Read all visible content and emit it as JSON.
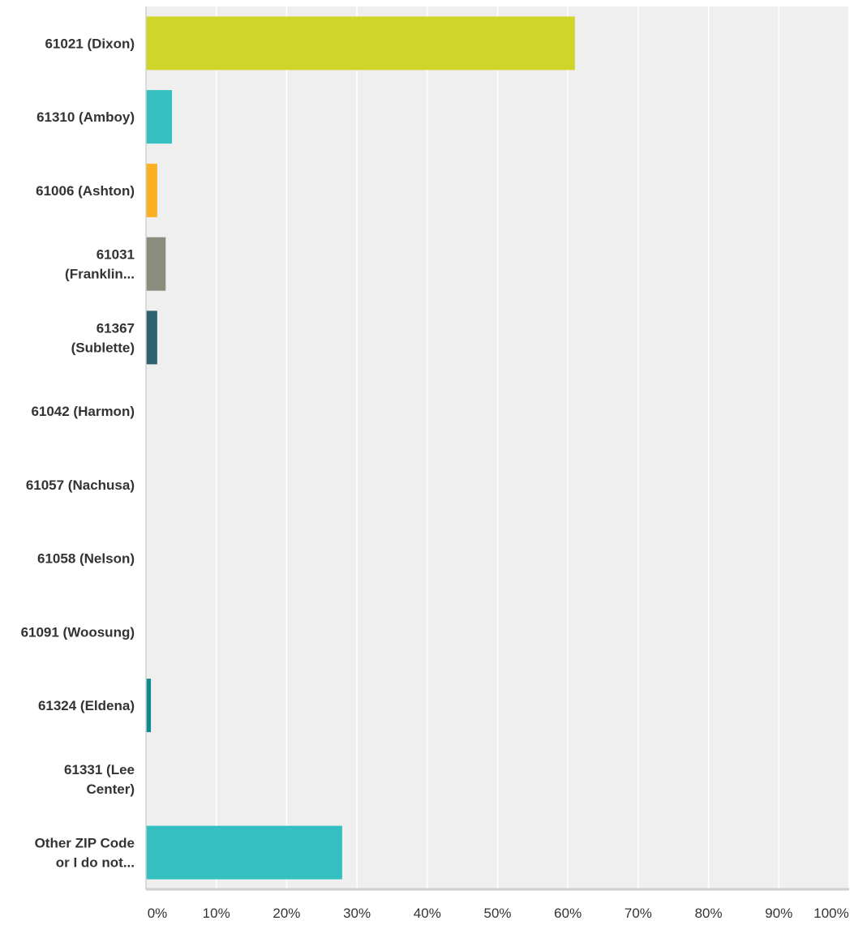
{
  "chart_data": {
    "type": "bar",
    "orientation": "horizontal",
    "categories": [
      [
        "61021 (Dixon)"
      ],
      [
        "61310 (Amboy)"
      ],
      [
        "61006 (Ashton)"
      ],
      [
        "61031",
        "(Franklin..."
      ],
      [
        "61367",
        "(Sublette)"
      ],
      [
        "61042 (Harmon)"
      ],
      [
        "61057 (Nachusa)"
      ],
      [
        "61058 (Nelson)"
      ],
      [
        "61091 (Woosung)"
      ],
      [
        "61324 (Eldena)"
      ],
      [
        "61331 (Lee",
        "Center)"
      ],
      [
        "Other ZIP Code",
        "or I do not..."
      ]
    ],
    "values": [
      61.0,
      3.7,
      1.6,
      2.8,
      1.6,
      0,
      0,
      0,
      0,
      0.7,
      0,
      27.9
    ],
    "bar_colors": [
      "#cfd629",
      "#34bfc0",
      "#f9b123",
      "#8c8c7c",
      "#2f6270",
      "#3f6e9c",
      "#5b8bc5",
      "#a4b93e",
      "#e8672f",
      "#0d8c8f",
      "#7f3e86",
      "#34bfc0"
    ],
    "xlim": [
      0,
      100
    ],
    "x_ticks": [
      "0%",
      "10%",
      "20%",
      "30%",
      "40%",
      "50%",
      "60%",
      "70%",
      "80%",
      "90%",
      "100%"
    ],
    "title": "",
    "xlabel": "",
    "ylabel": "",
    "grid": "vertical",
    "legend": "none",
    "plot_background": "#efefef",
    "gridline_color": "#ffffff",
    "text_color": "#333333"
  }
}
